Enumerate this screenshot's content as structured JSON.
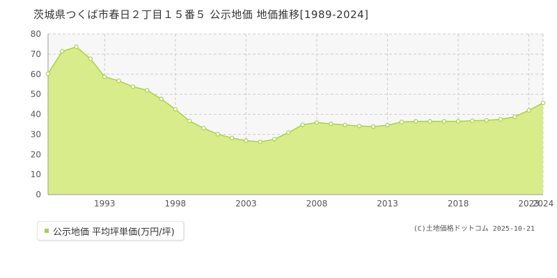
{
  "title": "茨城県つくば市春日２丁目１５番５ 公示地価 地価推移[1989-2024]",
  "legend": {
    "label": "公示地価 平均坪単価(万円/坪)"
  },
  "credit": "(C)土地価格ドットコム 2025-10-21",
  "colors": {
    "fill": "#d8ec8c",
    "line": "#a8d04a",
    "marker_fill": "#ffffff",
    "grid": "#cccccc",
    "upper_band": "#f7f7f7",
    "legend_swatch": "#a8d04a"
  },
  "chart_data": {
    "type": "area",
    "title": "茨城県つくば市春日２丁目１５番５ 公示地価 地価推移[1989-2024]",
    "xlabel": "",
    "ylabel": "",
    "x": [
      1989,
      1990,
      1991,
      1992,
      1993,
      1994,
      1995,
      1996,
      1997,
      1998,
      1999,
      2000,
      2001,
      2002,
      2003,
      2004,
      2005,
      2006,
      2007,
      2008,
      2009,
      2010,
      2011,
      2012,
      2013,
      2014,
      2015,
      2016,
      2017,
      2018,
      2019,
      2020,
      2021,
      2022,
      2023,
      2024
    ],
    "series": [
      {
        "name": "公示地価 平均坪単価(万円/坪)",
        "values": [
          60.2,
          71.4,
          73.6,
          67.7,
          58.7,
          56.7,
          53.8,
          52.0,
          47.7,
          42.5,
          36.7,
          33.1,
          30.1,
          28.2,
          26.9,
          26.3,
          27.6,
          30.9,
          34.8,
          35.9,
          35.3,
          34.7,
          34.2,
          33.9,
          34.6,
          36.2,
          36.5,
          36.5,
          36.5,
          36.5,
          36.8,
          37.0,
          37.5,
          38.8,
          42.0,
          45.7
        ]
      }
    ],
    "ylim": [
      0,
      80
    ],
    "yticks": [
      0,
      10,
      20,
      30,
      40,
      50,
      60,
      70,
      80
    ],
    "xlim": [
      1989,
      2024
    ],
    "xticks": [
      1993,
      1998,
      2003,
      2008,
      2013,
      2018,
      2023,
      2024
    ],
    "grid": true,
    "legend_position": "bottom-left"
  }
}
